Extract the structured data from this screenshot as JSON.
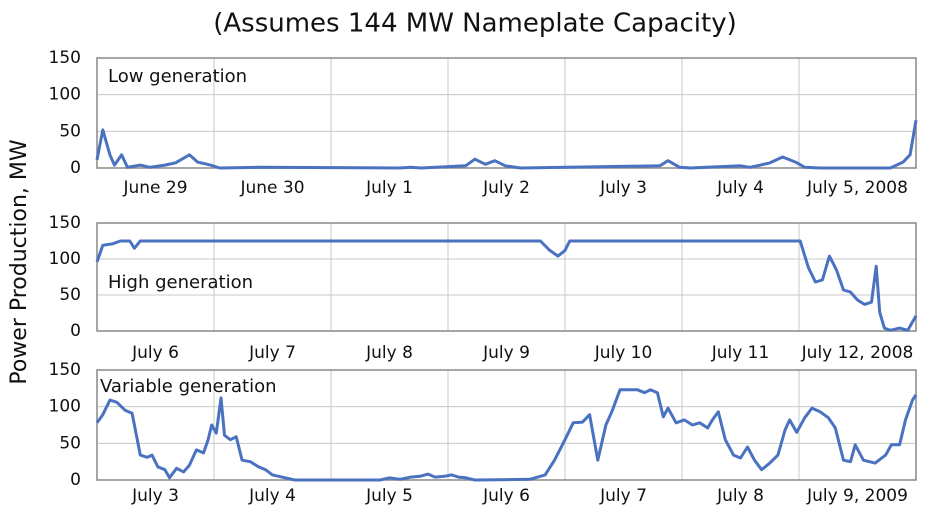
{
  "title": "(Assumes 144 MW Nameplate Capacity)",
  "ylabel": "Power Production, MW",
  "chart_data": [
    {
      "type": "line",
      "annotation": "Low generation",
      "categories": [
        "June 29",
        "June 30",
        "July 1",
        "July 2",
        "July 3",
        "July 4",
        "July 5, 2008"
      ],
      "x": [
        0,
        0.05,
        0.11,
        0.15,
        0.21,
        0.26,
        0.37,
        0.45,
        0.58,
        0.67,
        0.79,
        0.86,
        0.97,
        1.05,
        1.39,
        2.59,
        2.68,
        2.77,
        3.15,
        3.23,
        3.32,
        3.4,
        3.49,
        3.62,
        4.81,
        4.88,
        4.98,
        5.07,
        5.5,
        5.58,
        5.67,
        5.75,
        5.86,
        5.97,
        6.05,
        6.18,
        6.78,
        6.89,
        6.95,
        7
      ],
      "values": [
        11,
        52,
        18,
        4,
        18,
        1,
        4,
        1,
        4,
        7,
        18,
        8,
        4,
        0,
        1,
        0,
        1,
        0,
        3,
        12,
        5,
        10,
        3,
        0,
        3,
        10,
        1,
        0,
        3,
        1,
        4,
        7,
        15,
        8,
        1,
        0,
        0,
        8,
        18,
        65
      ],
      "color": "#4a72c0",
      "xlim": [
        0,
        7
      ],
      "ylim": [
        0,
        150
      ],
      "yticks": [
        0,
        50,
        100,
        150
      ],
      "grid": true
    },
    {
      "type": "line",
      "annotation": "High generation",
      "categories": [
        "July 6",
        "July 7",
        "July 8",
        "July 9",
        "July 10",
        "July 11",
        "July 12, 2008"
      ],
      "x": [
        0,
        0.05,
        0.13,
        0.2,
        0.28,
        0.32,
        0.37,
        3.79,
        3.87,
        3.94,
        4.0,
        4.04,
        6.01,
        6.08,
        6.14,
        6.2,
        6.26,
        6.32,
        6.38,
        6.44,
        6.5,
        6.56,
        6.62,
        6.66,
        6.69,
        6.73,
        6.78,
        6.86,
        6.93,
        7
      ],
      "values": [
        96,
        119,
        121,
        125,
        125,
        115,
        125,
        125,
        112,
        104,
        112,
        125,
        125,
        88,
        68,
        71,
        104,
        85,
        57,
        54,
        43,
        37,
        40,
        90,
        26,
        4,
        1,
        4,
        1,
        21
      ],
      "color": "#4a72c0",
      "xlim": [
        0,
        7
      ],
      "ylim": [
        0,
        150
      ],
      "yticks": [
        0,
        50,
        100,
        150
      ],
      "grid": true
    },
    {
      "type": "line",
      "annotation": "Variable generation",
      "categories": [
        "July 3",
        "July 4",
        "July 5",
        "July 6",
        "July 7",
        "July 8",
        "July 9, 2009"
      ],
      "x": [
        0,
        0.05,
        0.11,
        0.17,
        0.24,
        0.3,
        0.37,
        0.43,
        0.47,
        0.52,
        0.58,
        0.62,
        0.68,
        0.74,
        0.79,
        0.85,
        0.91,
        0.95,
        0.98,
        1.02,
        1.06,
        1.09,
        1.14,
        1.19,
        1.24,
        1.31,
        1.38,
        1.44,
        1.5,
        1.58,
        1.69,
        2.42,
        2.5,
        2.59,
        2.68,
        2.76,
        2.83,
        2.89,
        2.97,
        3.03,
        3.09,
        3.15,
        3.23,
        3.7,
        3.83,
        3.91,
        4.0,
        4.07,
        4.15,
        4.21,
        4.28,
        4.35,
        4.4,
        4.47,
        4.56,
        4.62,
        4.68,
        4.73,
        4.79,
        4.84,
        4.88,
        4.95,
        5.02,
        5.09,
        5.15,
        5.22,
        5.26,
        5.31,
        5.37,
        5.44,
        5.5,
        5.56,
        5.62,
        5.68,
        5.75,
        5.82,
        5.88,
        5.92,
        5.98,
        6.05,
        6.11,
        6.18,
        6.25,
        6.31,
        6.38,
        6.44,
        6.48,
        6.55,
        6.65,
        6.74,
        6.79,
        6.86,
        6.91,
        6.97,
        7.0
      ],
      "values": [
        78,
        89,
        109,
        106,
        95,
        91,
        34,
        31,
        34,
        18,
        14,
        3,
        16,
        11,
        20,
        41,
        37,
        55,
        75,
        64,
        112,
        61,
        55,
        59,
        27,
        25,
        18,
        14,
        7,
        4,
        0,
        0,
        3,
        1,
        4,
        5,
        8,
        4,
        5,
        7,
        4,
        3,
        0,
        1,
        7,
        27,
        55,
        78,
        79,
        89,
        27,
        75,
        93,
        123,
        123,
        123,
        119,
        123,
        119,
        86,
        98,
        78,
        82,
        75,
        78,
        71,
        82,
        93,
        55,
        34,
        30,
        45,
        27,
        14,
        23,
        34,
        68,
        82,
        65,
        85,
        98,
        93,
        85,
        71,
        27,
        25,
        48,
        27,
        23,
        34,
        48,
        48,
        82,
        109,
        116
      ],
      "color": "#4a72c0",
      "xlim": [
        0,
        7
      ],
      "ylim": [
        0,
        150
      ],
      "yticks": [
        0,
        50,
        100,
        150
      ],
      "grid": true
    }
  ]
}
